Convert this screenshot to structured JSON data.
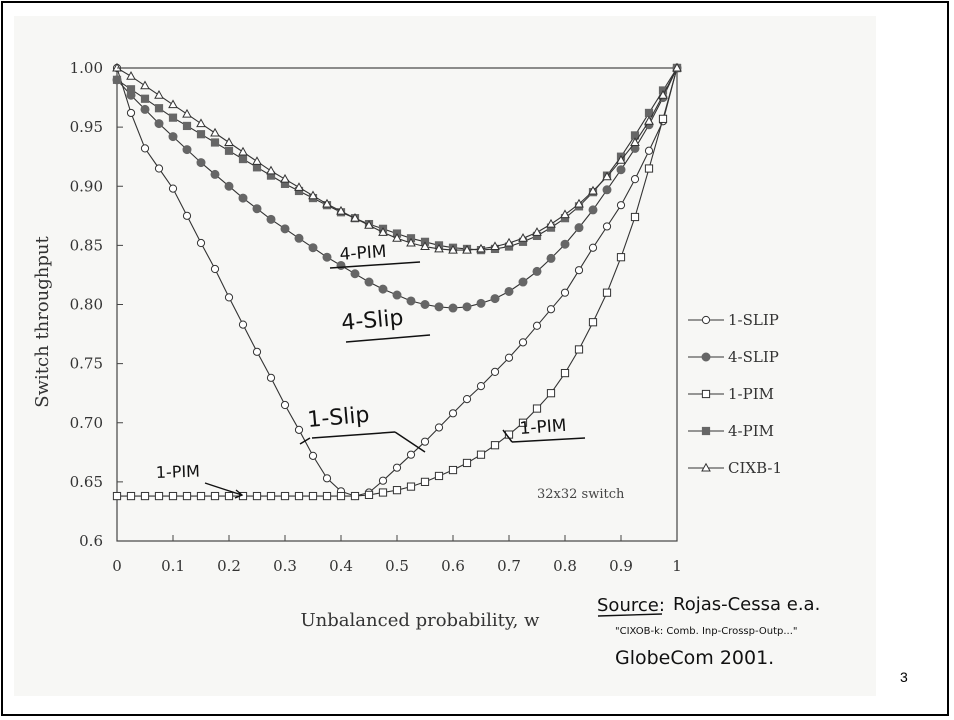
{
  "page_number": "3",
  "chart_data": {
    "type": "line",
    "xlabel": "Unbalanced probability, w",
    "ylabel": "Switch throughput",
    "xlim": [
      0,
      1
    ],
    "ylim": [
      0.6,
      1.0
    ],
    "x_ticks": [
      "0",
      "0.1",
      "0.2",
      "0.3",
      "0.4",
      "0.5",
      "0.6",
      "0.7",
      "0.8",
      "0.9",
      "1"
    ],
    "y_ticks": [
      "0.6",
      "0.65",
      "0.70",
      "0.75",
      "0.80",
      "0.85",
      "0.90",
      "0.95",
      "1.00"
    ],
    "annotation": "32x32 switch",
    "legend_position": "right",
    "x": [
      0,
      0.025,
      0.05,
      0.075,
      0.1,
      0.125,
      0.15,
      0.175,
      0.2,
      0.225,
      0.25,
      0.275,
      0.3,
      0.325,
      0.35,
      0.375,
      0.4,
      0.425,
      0.45,
      0.475,
      0.5,
      0.525,
      0.55,
      0.575,
      0.6,
      0.625,
      0.65,
      0.675,
      0.7,
      0.725,
      0.75,
      0.775,
      0.8,
      0.825,
      0.85,
      0.875,
      0.9,
      0.925,
      0.95,
      0.975,
      1
    ],
    "series": [
      {
        "name": "1-SLIP",
        "marker": "circle-open",
        "values": [
          1.0,
          0.962,
          0.932,
          0.915,
          0.898,
          0.875,
          0.852,
          0.83,
          0.806,
          0.783,
          0.76,
          0.738,
          0.715,
          0.694,
          0.672,
          0.653,
          0.642,
          0.638,
          0.641,
          0.651,
          0.662,
          0.673,
          0.684,
          0.696,
          0.708,
          0.72,
          0.731,
          0.743,
          0.755,
          0.768,
          0.782,
          0.796,
          0.81,
          0.829,
          0.848,
          0.866,
          0.884,
          0.906,
          0.93,
          0.955,
          1.0
        ]
      },
      {
        "name": "4-SLIP",
        "marker": "circle-filled",
        "values": [
          0.99,
          0.977,
          0.965,
          0.953,
          0.942,
          0.931,
          0.92,
          0.91,
          0.9,
          0.89,
          0.881,
          0.872,
          0.864,
          0.856,
          0.848,
          0.84,
          0.833,
          0.826,
          0.819,
          0.813,
          0.808,
          0.803,
          0.8,
          0.798,
          0.797,
          0.798,
          0.801,
          0.805,
          0.811,
          0.819,
          0.828,
          0.839,
          0.851,
          0.865,
          0.88,
          0.897,
          0.914,
          0.932,
          0.952,
          0.975,
          1.0
        ]
      },
      {
        "name": "1-PIM",
        "marker": "square-open",
        "values": [
          0.638,
          0.638,
          0.638,
          0.638,
          0.638,
          0.638,
          0.638,
          0.638,
          0.638,
          0.638,
          0.638,
          0.638,
          0.638,
          0.638,
          0.638,
          0.638,
          0.638,
          0.638,
          0.639,
          0.641,
          0.643,
          0.646,
          0.65,
          0.655,
          0.66,
          0.666,
          0.673,
          0.681,
          0.69,
          0.7,
          0.712,
          0.725,
          0.742,
          0.762,
          0.785,
          0.81,
          0.84,
          0.874,
          0.915,
          0.957,
          1.0
        ]
      },
      {
        "name": "4-PIM",
        "marker": "square-filled",
        "values": [
          0.99,
          0.982,
          0.974,
          0.966,
          0.958,
          0.951,
          0.944,
          0.937,
          0.93,
          0.923,
          0.916,
          0.909,
          0.902,
          0.896,
          0.89,
          0.884,
          0.878,
          0.873,
          0.868,
          0.864,
          0.86,
          0.856,
          0.853,
          0.85,
          0.848,
          0.847,
          0.846,
          0.847,
          0.849,
          0.853,
          0.858,
          0.865,
          0.873,
          0.883,
          0.895,
          0.909,
          0.925,
          0.943,
          0.962,
          0.981,
          1.0
        ]
      },
      {
        "name": "CIXB-1",
        "marker": "triangle-open",
        "values": [
          1.0,
          0.993,
          0.985,
          0.977,
          0.969,
          0.961,
          0.953,
          0.945,
          0.937,
          0.929,
          0.921,
          0.913,
          0.906,
          0.899,
          0.892,
          0.885,
          0.879,
          0.873,
          0.867,
          0.861,
          0.856,
          0.852,
          0.849,
          0.847,
          0.846,
          0.846,
          0.847,
          0.849,
          0.852,
          0.856,
          0.861,
          0.868,
          0.876,
          0.885,
          0.896,
          0.908,
          0.922,
          0.937,
          0.955,
          0.977,
          1.0
        ]
      }
    ]
  },
  "handwritten": {
    "label_4pim": "4-PIM",
    "label_4slip": "4-Slip",
    "label_1slip": "1-Slip",
    "label_1pim_right": "1-PIM",
    "label_1pim_left": "1-PIM",
    "source_label": "Source:",
    "source_author": "Rojas-Cessa e.a.",
    "source_title": "\"CIXOB-k: Comb. Inp-Crossp-Outp...\"",
    "source_venue": "GlobeCom 2001."
  },
  "colors": {
    "line": "#333333",
    "marker_filled": "#666666",
    "background": "#f7f7f5",
    "ink": "#111111"
  }
}
